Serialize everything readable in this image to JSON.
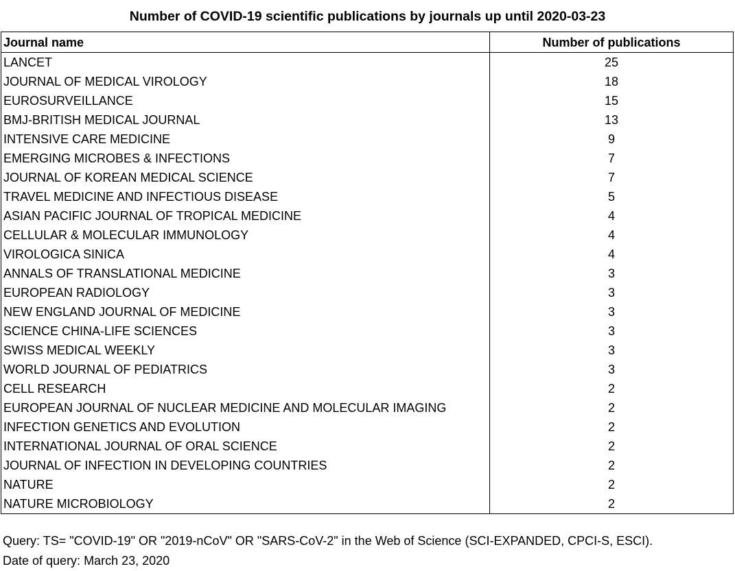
{
  "chart_data": {
    "type": "table",
    "title": "Number of COVID-19 scientific publications by journals up until 2020-03-23",
    "columns": [
      "Journal name",
      "Number of publications"
    ],
    "rows": [
      [
        "LANCET",
        25
      ],
      [
        "JOURNAL OF MEDICAL VIROLOGY",
        18
      ],
      [
        "EUROSURVEILLANCE",
        15
      ],
      [
        "BMJ-BRITISH MEDICAL JOURNAL",
        13
      ],
      [
        "INTENSIVE CARE MEDICINE",
        9
      ],
      [
        "EMERGING MICROBES & INFECTIONS",
        7
      ],
      [
        "JOURNAL OF KOREAN MEDICAL SCIENCE",
        7
      ],
      [
        "TRAVEL MEDICINE AND INFECTIOUS DISEASE",
        5
      ],
      [
        "ASIAN PACIFIC JOURNAL OF TROPICAL MEDICINE",
        4
      ],
      [
        "CELLULAR & MOLECULAR IMMUNOLOGY",
        4
      ],
      [
        "VIROLOGICA SINICA",
        4
      ],
      [
        "ANNALS OF TRANSLATIONAL MEDICINE",
        3
      ],
      [
        "EUROPEAN RADIOLOGY",
        3
      ],
      [
        "NEW ENGLAND JOURNAL OF MEDICINE",
        3
      ],
      [
        "SCIENCE CHINA-LIFE SCIENCES",
        3
      ],
      [
        "SWISS MEDICAL WEEKLY",
        3
      ],
      [
        "WORLD JOURNAL OF PEDIATRICS",
        3
      ],
      [
        "CELL RESEARCH",
        2
      ],
      [
        "EUROPEAN JOURNAL OF NUCLEAR MEDICINE AND MOLECULAR IMAGING",
        2
      ],
      [
        "INFECTION GENETICS AND EVOLUTION",
        2
      ],
      [
        "INTERNATIONAL JOURNAL OF ORAL SCIENCE",
        2
      ],
      [
        "JOURNAL OF INFECTION IN DEVELOPING COUNTRIES",
        2
      ],
      [
        "NATURE",
        2
      ],
      [
        "NATURE MICROBIOLOGY",
        2
      ]
    ],
    "notes": [
      "Query: TS= \"COVID-19\" OR \"2019-nCoV\" OR \"SARS-CoV-2\" in the Web of Science (SCI-EXPANDED, CPCI-S, ESCI).",
      "Date of query: March 23, 2020"
    ]
  }
}
